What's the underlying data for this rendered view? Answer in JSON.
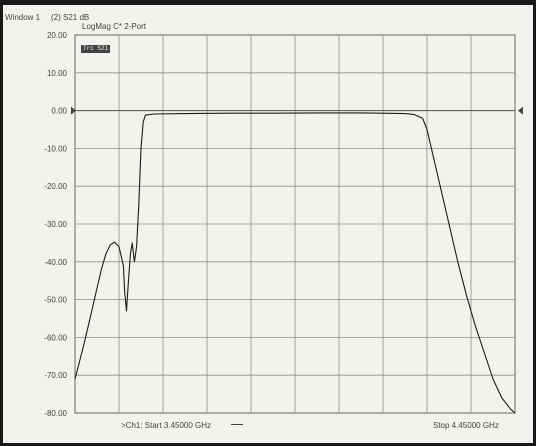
{
  "header": {
    "window_label": "Window 1",
    "trace_label": "(2) S21 dB",
    "format_label": "LogMag C* 2-Port",
    "marker_label": "Trc S21"
  },
  "footer": {
    "start_label": ">Ch1: Start  3.45000 GHz",
    "stop_label": "Stop  4.45000 GHz"
  },
  "colors": {
    "trace": "#1c1c1c",
    "grid": "#8f8f8f",
    "background": "#f2f2ef"
  },
  "chart_data": {
    "type": "line",
    "title": "(2) S21 dB",
    "subtitle": "LogMag C* 2-Port",
    "xlabel": "",
    "ylabel": "",
    "x_range_ghz": [
      3.45,
      4.45
    ],
    "ylim": [
      -80,
      20
    ],
    "y_ticks": [
      "20.00",
      "10.00",
      "0.00",
      "-10.00",
      "-20.00",
      "-30.00",
      "-40.00",
      "-50.00",
      "-60.00",
      "-70.00",
      "-80.00"
    ],
    "reference_level_db": 0,
    "grid": true,
    "x_divisions": 10,
    "series": [
      {
        "name": "S21",
        "points": [
          [
            3.45,
            -71
          ],
          [
            3.47,
            -62
          ],
          [
            3.49,
            -52
          ],
          [
            3.5,
            -47
          ],
          [
            3.51,
            -42
          ],
          [
            3.52,
            -38
          ],
          [
            3.53,
            -35.5
          ],
          [
            3.54,
            -34.8
          ],
          [
            3.55,
            -36
          ],
          [
            3.56,
            -41
          ],
          [
            3.563,
            -48
          ],
          [
            3.567,
            -53
          ],
          [
            3.571,
            -46
          ],
          [
            3.576,
            -38
          ],
          [
            3.58,
            -35
          ],
          [
            3.585,
            -40
          ],
          [
            3.59,
            -36
          ],
          [
            3.595,
            -25
          ],
          [
            3.6,
            -10
          ],
          [
            3.605,
            -3
          ],
          [
            3.61,
            -1.2
          ],
          [
            3.63,
            -0.9
          ],
          [
            3.7,
            -0.8
          ],
          [
            3.8,
            -0.7
          ],
          [
            3.9,
            -0.7
          ],
          [
            4.0,
            -0.6
          ],
          [
            4.1,
            -0.6
          ],
          [
            4.2,
            -0.8
          ],
          [
            4.22,
            -1.0
          ],
          [
            4.24,
            -2
          ],
          [
            4.25,
            -5
          ],
          [
            4.26,
            -10
          ],
          [
            4.28,
            -20
          ],
          [
            4.3,
            -30
          ],
          [
            4.32,
            -40
          ],
          [
            4.34,
            -49
          ],
          [
            4.36,
            -57
          ],
          [
            4.38,
            -64
          ],
          [
            4.4,
            -71
          ],
          [
            4.42,
            -76
          ],
          [
            4.44,
            -79
          ],
          [
            4.45,
            -80
          ]
        ]
      }
    ]
  }
}
